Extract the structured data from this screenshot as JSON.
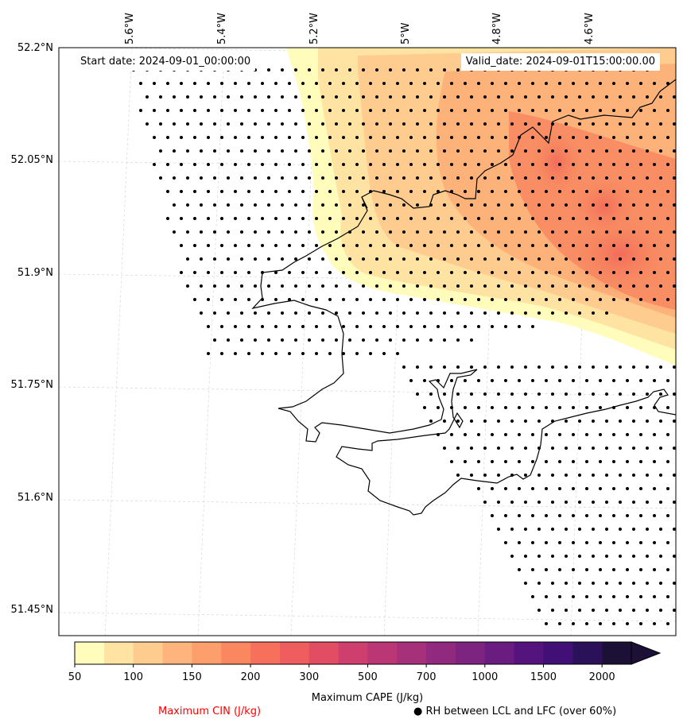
{
  "map": {
    "start_date": "Start date: 2024-09-01_00:00:00",
    "valid_date": "Valid_date: 2024-09-01T15:00:00.00",
    "lat_labels": [
      "52.2°N",
      "52.05°N",
      "51.9°N",
      "51.75°N",
      "51.6°N",
      "51.45°N"
    ],
    "lon_labels": [
      "5.6°W",
      "5.4°W",
      "5.2°W",
      "5°W",
      "4.8°W",
      "4.6°W"
    ],
    "grid": true
  },
  "colorbar": {
    "title": "Maximum CAPE (J/kg)",
    "tick_labels": [
      "50",
      "100",
      "150",
      "200",
      "300",
      "500",
      "700",
      "1000",
      "1500",
      "2000"
    ],
    "levels": [
      50,
      75,
      100,
      125,
      150,
      175,
      200,
      250,
      300,
      400,
      500,
      600,
      700,
      850,
      1000,
      1250,
      1500,
      1750,
      2000
    ],
    "colors": [
      "#fffcbc",
      "#fee3a2",
      "#fecc8e",
      "#feb47c",
      "#fd9f6d",
      "#fb8761",
      "#f7705c",
      "#ef5d5e",
      "#e24d63",
      "#ce3f6d",
      "#ba3675",
      "#a6307a",
      "#91297e",
      "#7d2380",
      "#6a1c81",
      "#55137e",
      "#410f75",
      "#2b1159",
      "#1c1036"
    ],
    "extend": "max"
  },
  "legend": {
    "cin_label": "Maximum CIN (J/kg)",
    "cin_color": "#ff0000",
    "rh_label": "● RH between LCL and LFC (over 60%)"
  }
}
